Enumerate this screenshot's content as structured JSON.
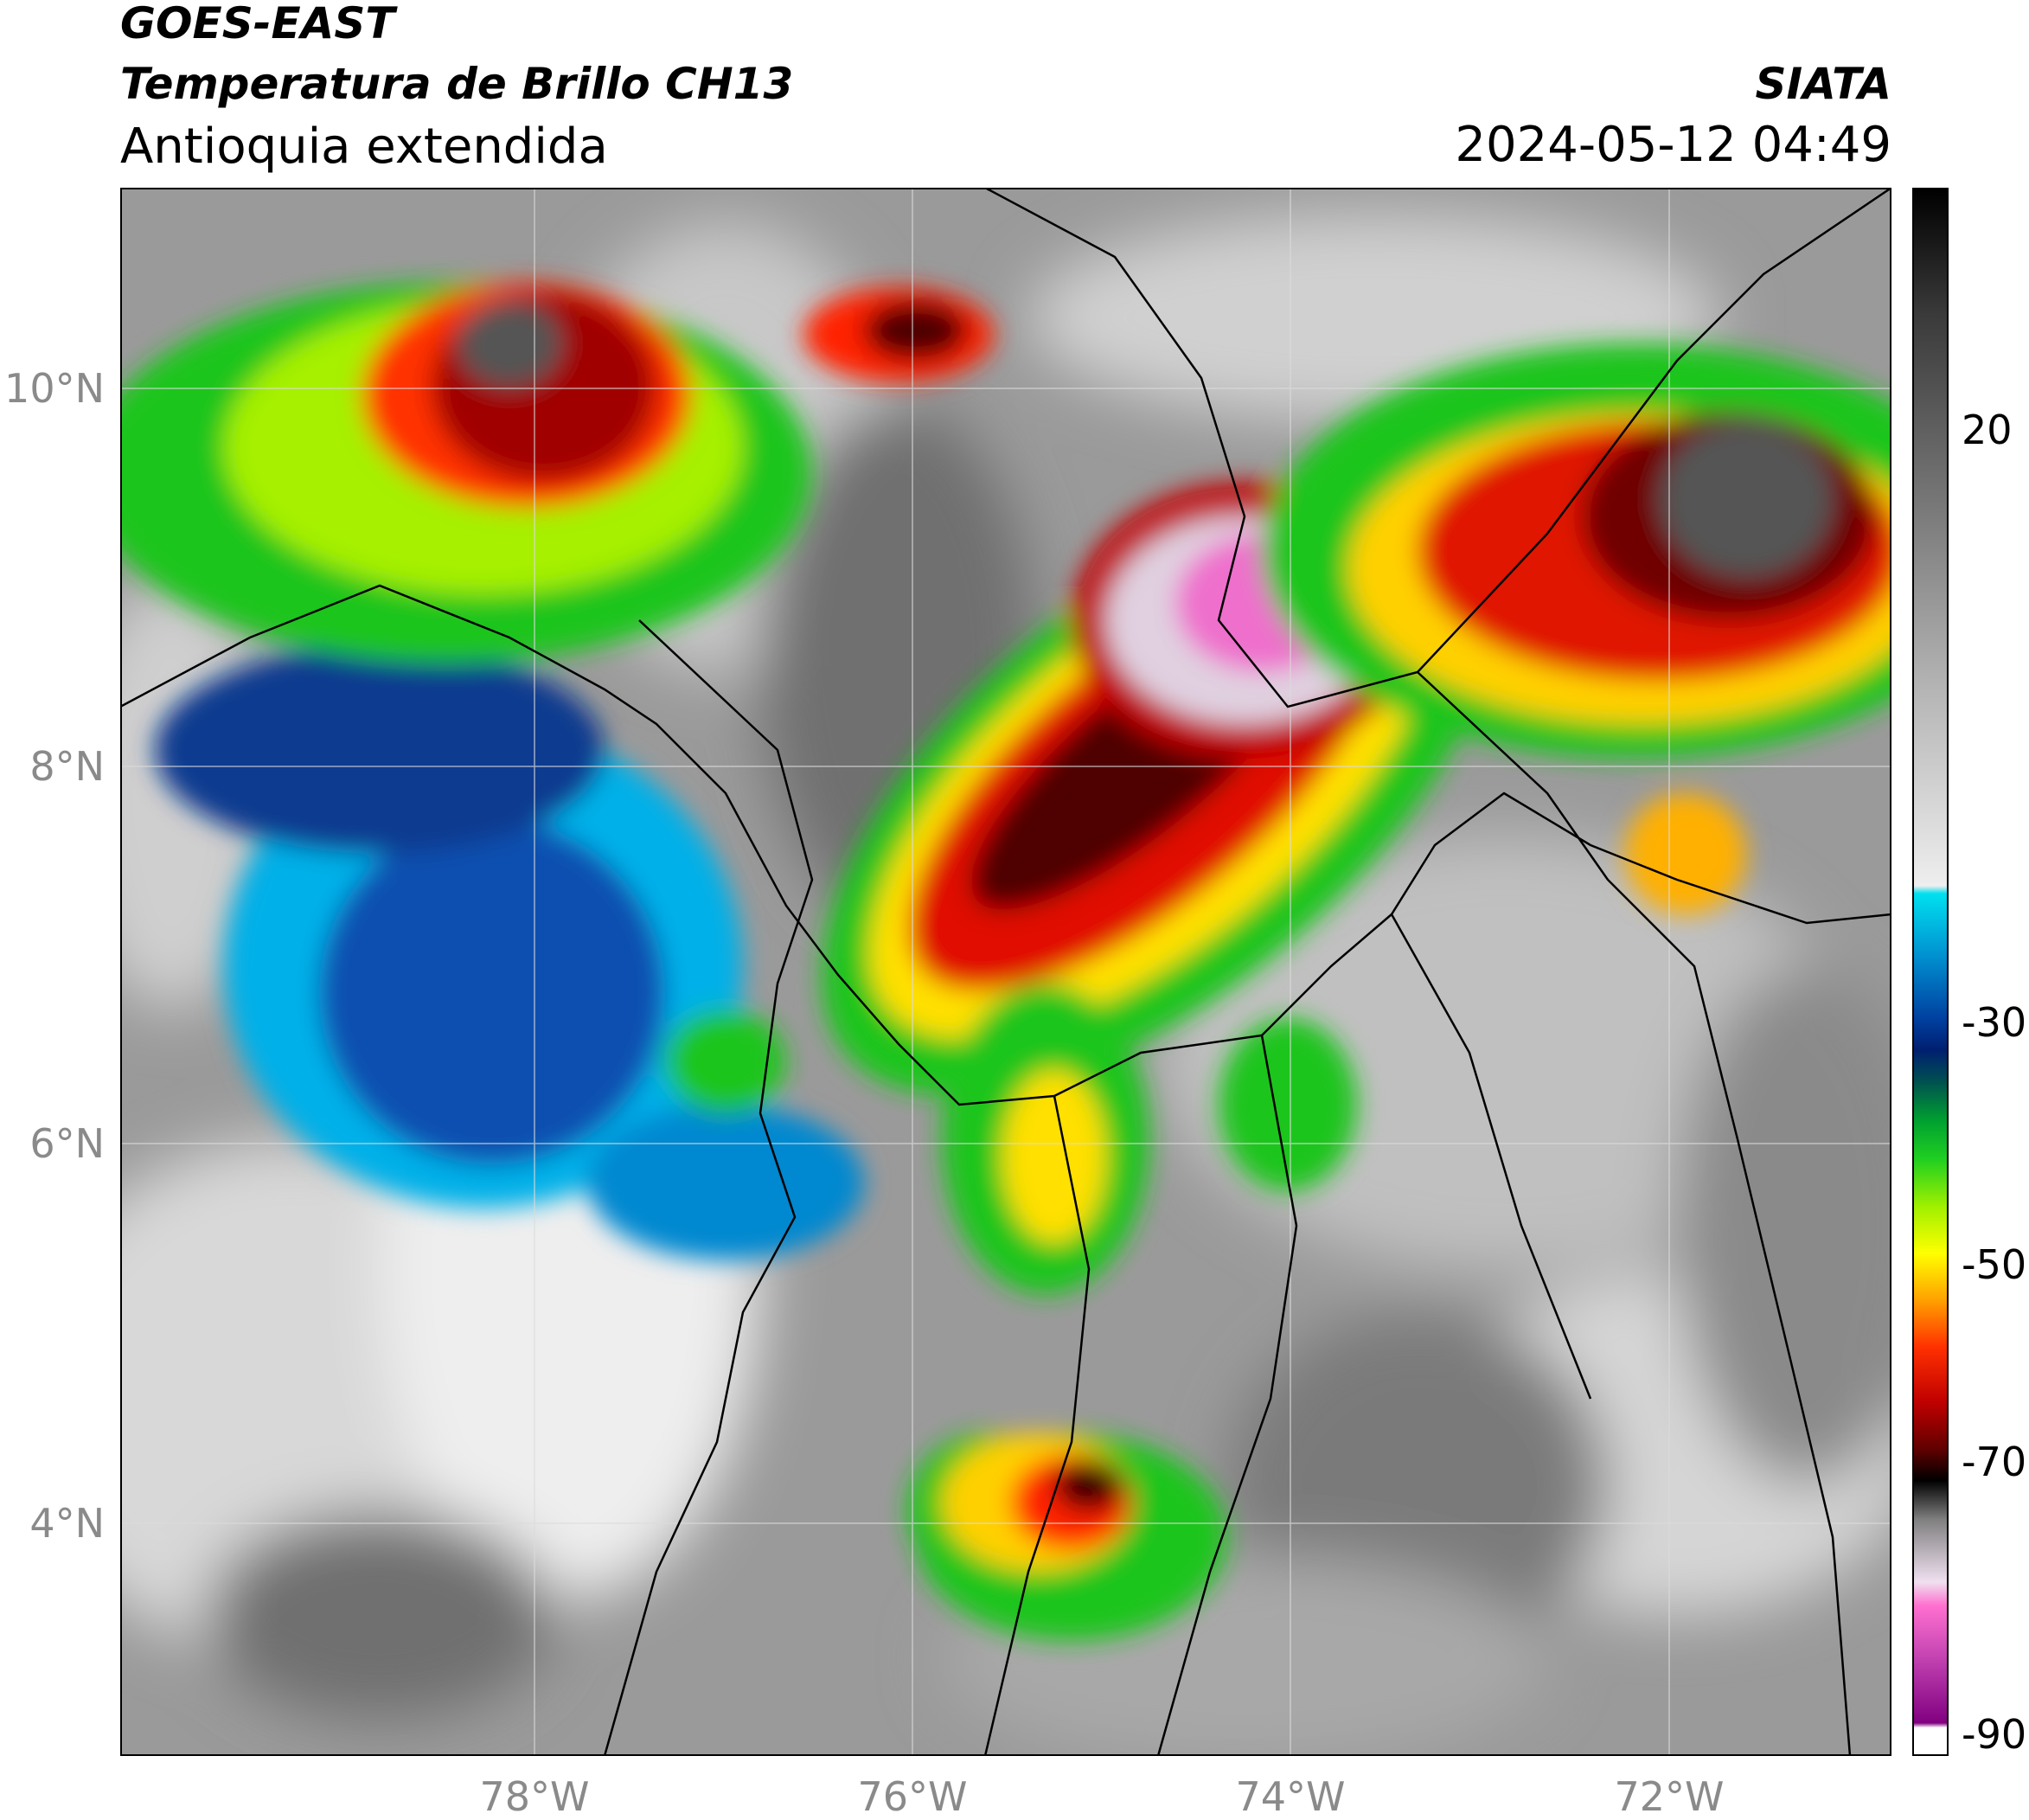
{
  "header": {
    "satellite": "GOES-EAST",
    "product": "Temperatura de Brillo CH13",
    "region": "Antioquia extendida",
    "source": "SIATA",
    "datetime": "2024-05-12 04:49"
  },
  "map": {
    "lat_labels": [
      "10°N",
      "8°N",
      "6°N",
      "4°N"
    ],
    "lon_labels": [
      "78°W",
      "76°W",
      "74°W",
      "72°W"
    ]
  },
  "colorbar": {
    "tick_labels": [
      "20",
      "-30",
      "-50",
      "-70",
      "-90"
    ]
  }
}
